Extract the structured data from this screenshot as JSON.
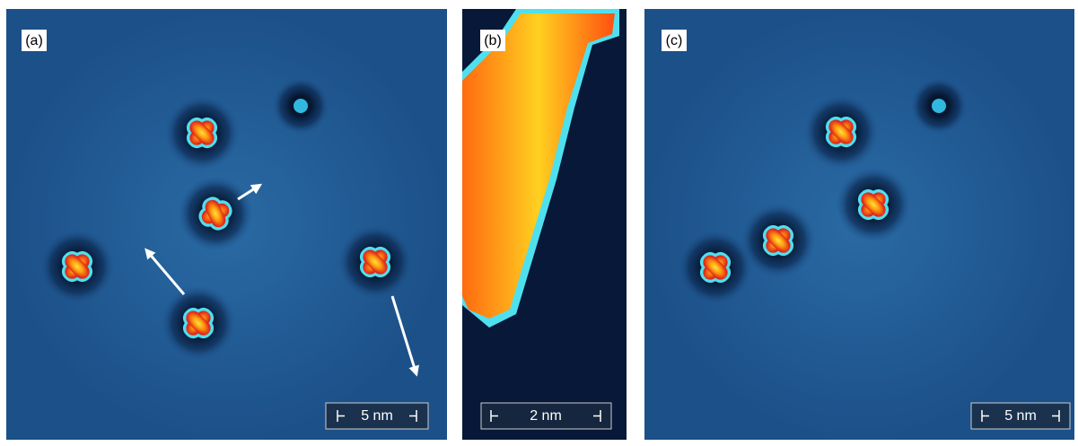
{
  "panels": [
    {
      "label": "(a)",
      "scale_bar": "5 nm"
    },
    {
      "label": "(b)",
      "scale_bar": "2 nm"
    },
    {
      "label": "(c)",
      "scale_bar": "5 nm"
    }
  ]
}
